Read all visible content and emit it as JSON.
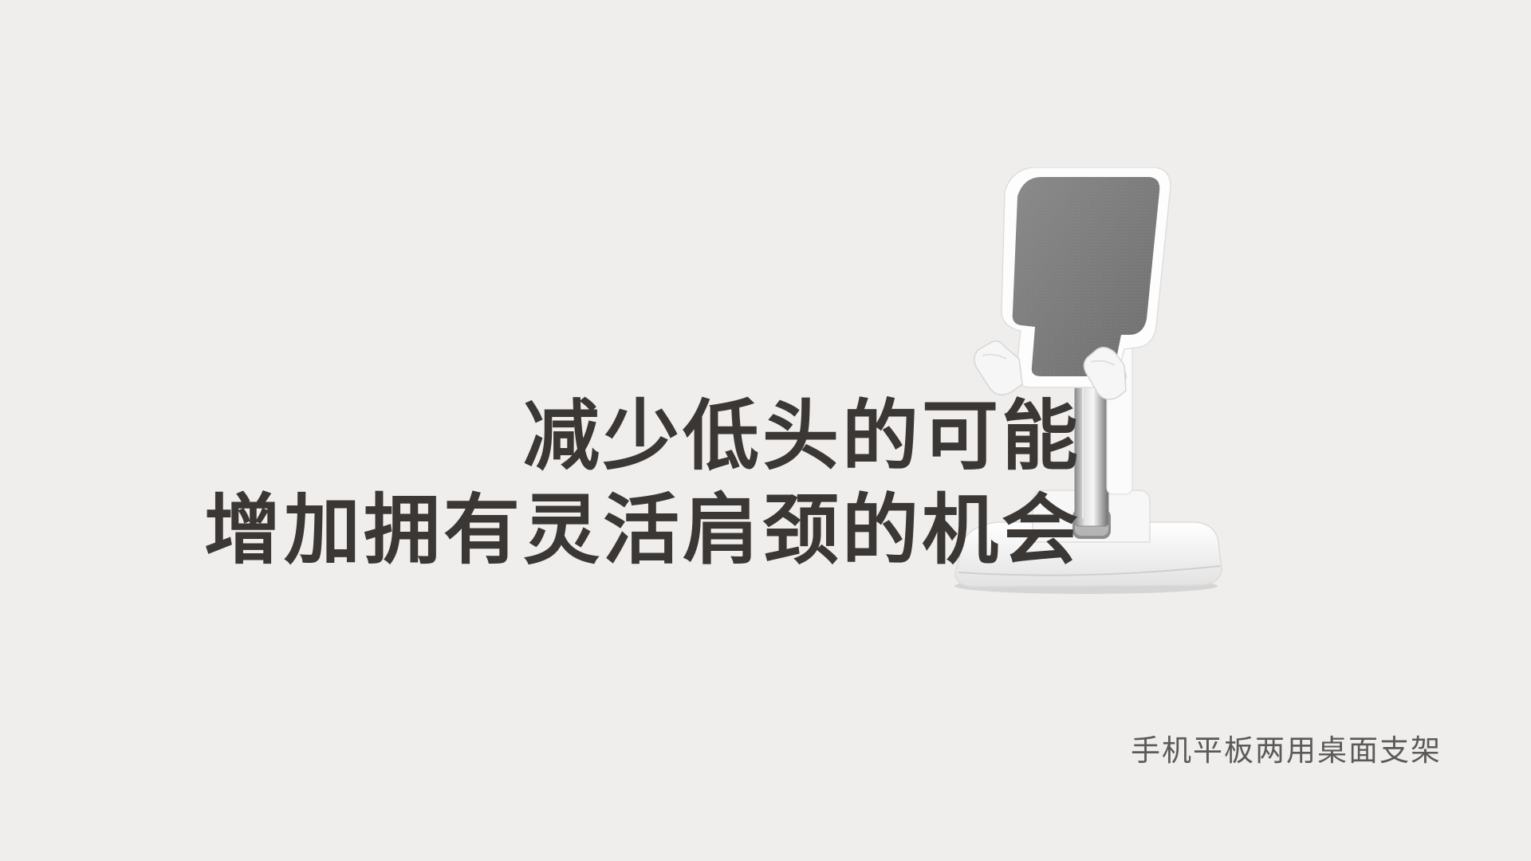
{
  "headline": {
    "line1": "减少低头的可能",
    "line2": "增加拥有灵活肩颈的机会"
  },
  "caption": "手机平板两用桌面支架",
  "colors": {
    "background": "#efeeec",
    "headline_text": "#3b3735",
    "caption_text": "#5d5957",
    "pad_gray": "#7d7d7d",
    "body_white": "#fafafa"
  },
  "product_image": "phone-tablet-stand-icon"
}
